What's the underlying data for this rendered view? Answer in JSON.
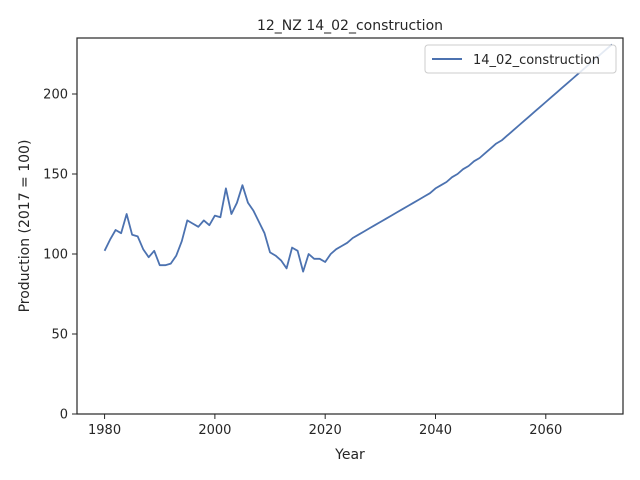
{
  "chart_data": {
    "type": "line",
    "title": "12_NZ 14_02_construction",
    "xlabel": "Year",
    "ylabel": "Production (2017 = 100)",
    "xlim": [
      1975,
      2074
    ],
    "ylim": [
      0,
      235
    ],
    "xticks": [
      1980,
      2000,
      2020,
      2040,
      2060
    ],
    "yticks": [
      0,
      50,
      100,
      150,
      200
    ],
    "grid": false,
    "legend_position": "top-right",
    "series": [
      {
        "name": "14_02_construction",
        "color": "#4c72b0",
        "x": [
          1980,
          1981,
          1982,
          1983,
          1984,
          1985,
          1986,
          1987,
          1988,
          1989,
          1990,
          1991,
          1992,
          1993,
          1994,
          1995,
          1996,
          1997,
          1998,
          1999,
          2000,
          2001,
          2002,
          2003,
          2004,
          2005,
          2006,
          2007,
          2008,
          2009,
          2010,
          2011,
          2012,
          2013,
          2014,
          2015,
          2016,
          2017,
          2018,
          2019,
          2020,
          2021,
          2022,
          2023,
          2024,
          2025,
          2026,
          2027,
          2028,
          2029,
          2030,
          2031,
          2032,
          2033,
          2034,
          2035,
          2036,
          2037,
          2038,
          2039,
          2040,
          2041,
          2042,
          2043,
          2044,
          2045,
          2046,
          2047,
          2048,
          2049,
          2050,
          2051,
          2052,
          2053,
          2054,
          2055,
          2056,
          2057,
          2058,
          2059,
          2060,
          2061,
          2062,
          2063,
          2064,
          2065,
          2066,
          2067,
          2068,
          2069,
          2070,
          2071,
          2072
        ],
        "values": [
          102,
          109,
          115,
          113,
          125,
          112,
          111,
          103,
          98,
          102,
          93,
          93,
          94,
          99,
          108,
          121,
          119,
          117,
          121,
          118,
          124,
          123,
          141,
          125,
          132,
          143,
          132,
          127,
          120,
          113,
          101,
          99,
          96,
          91,
          104,
          102,
          89,
          100,
          97,
          97,
          95,
          100,
          103,
          105,
          107,
          110,
          112,
          114,
          116,
          118,
          120,
          122,
          124,
          126,
          128,
          130,
          132,
          134,
          136,
          138,
          141,
          143,
          145,
          148,
          150,
          153,
          155,
          158,
          160,
          163,
          166,
          169,
          171,
          174,
          177,
          180,
          183,
          186,
          189,
          192,
          195,
          198,
          201,
          204,
          207,
          210,
          213,
          216,
          219,
          222,
          225,
          228,
          231
        ]
      }
    ]
  }
}
